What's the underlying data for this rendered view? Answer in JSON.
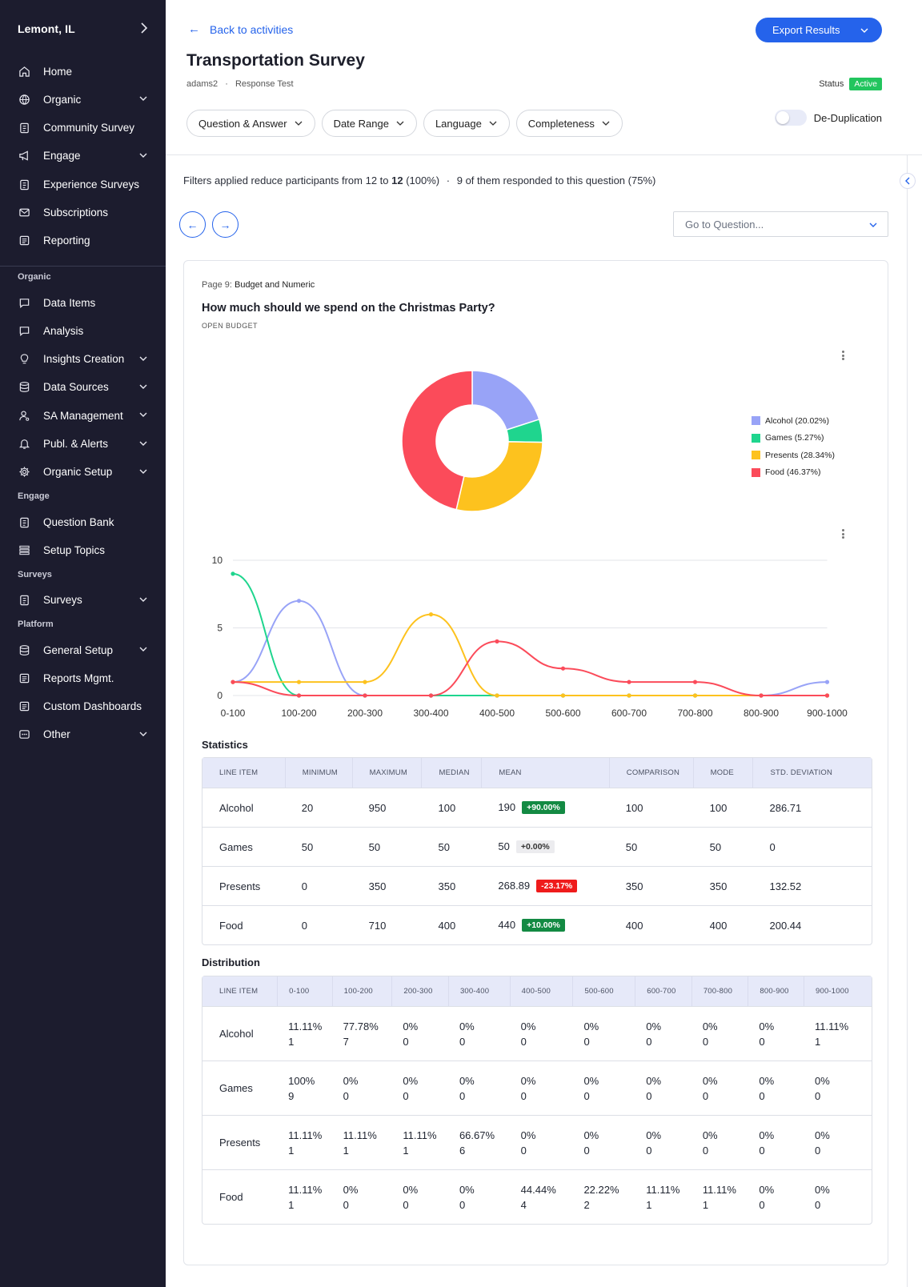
{
  "sidebar": {
    "city": "Lemont, IL",
    "items": [
      {
        "label": "Home",
        "icon": "home-icon"
      },
      {
        "label": "Organic",
        "icon": "globe-icon",
        "caret": true
      },
      {
        "label": "Community Survey",
        "icon": "clipboard-icon"
      },
      {
        "label": "Engage",
        "icon": "megaphone-icon",
        "caret": true
      },
      {
        "label": "Experience Surveys",
        "icon": "clipboard-icon"
      },
      {
        "label": "Subscriptions",
        "icon": "mail-icon"
      },
      {
        "label": "Reporting",
        "icon": "report-icon"
      }
    ],
    "sections": [
      {
        "title": "Organic",
        "items": [
          {
            "label": "Data Items",
            "icon": "chat-icon"
          },
          {
            "label": "Analysis",
            "icon": "chat-icon"
          },
          {
            "label": "Insights Creation",
            "icon": "bulb-icon",
            "caret": true
          },
          {
            "label": "Data Sources",
            "icon": "database-icon",
            "caret": true
          },
          {
            "label": "SA Management",
            "icon": "user-gear-icon",
            "caret": true
          },
          {
            "label": "Publ. & Alerts",
            "icon": "bell-icon",
            "caret": true
          },
          {
            "label": "Organic Setup",
            "icon": "gear-icon",
            "caret": true
          }
        ]
      },
      {
        "title": "Engage",
        "items": [
          {
            "label": "Question Bank",
            "icon": "clipboard-icon"
          },
          {
            "label": "Setup Topics",
            "icon": "list-icon"
          }
        ]
      },
      {
        "title": "Surveys",
        "items": [
          {
            "label": "Surveys",
            "icon": "clipboard-icon",
            "caret": true
          }
        ]
      },
      {
        "title": "Platform",
        "items": [
          {
            "label": "General Setup",
            "icon": "database-icon",
            "caret": true
          },
          {
            "label": "Reports Mgmt.",
            "icon": "report-icon"
          },
          {
            "label": "Custom Dashboards",
            "icon": "report-icon"
          },
          {
            "label": "Other",
            "icon": "dots-box-icon",
            "caret": true
          }
        ]
      }
    ]
  },
  "header": {
    "back_label": "Back to activities",
    "export_label": "Export Results",
    "title": "Transportation Survey",
    "user": "adams2",
    "separator": "·",
    "subtitle": "Response Test",
    "status_label": "Status",
    "status_value": "Active",
    "filters": [
      "Question & Answer",
      "Date Range",
      "Language",
      "Completeness"
    ],
    "dedup_label": "De-Duplication",
    "dedup_on": false
  },
  "filter_note": {
    "prefix": "Filters applied reduce participants from 12 to ",
    "bold": "12",
    "pct": " (100%)",
    "sep": "·",
    "responded": "9 of them responded to this question (75%)"
  },
  "goto_placeholder": "Go to Question...",
  "question": {
    "page_num": "Page 9:",
    "page_title": "Budget and Numeric",
    "title": "How much should we spend on the Christmas Party?",
    "type": "OPEN BUDGET"
  },
  "colors": {
    "Alcohol": "#98a3f7",
    "Games": "#1fd58e",
    "Presents": "#fdc21e",
    "Food": "#fb4b5a",
    "accent": "#2563eb"
  },
  "chart_data": [
    {
      "type": "pie",
      "variant": "donut",
      "categories": [
        "Alcohol",
        "Games",
        "Presents",
        "Food"
      ],
      "values": [
        20.02,
        5.27,
        28.34,
        46.37
      ],
      "legend": [
        "Alcohol (20.02%)",
        "Games (5.27%)",
        "Presents (28.34%)",
        "Food (46.37%)"
      ],
      "legend_position": "right"
    },
    {
      "type": "line",
      "smooth": true,
      "categories": [
        "0-100",
        "100-200",
        "200-300",
        "300-400",
        "400-500",
        "500-600",
        "600-700",
        "700-800",
        "800-900",
        "900-1000"
      ],
      "yticks": [
        "0",
        "5",
        "10"
      ],
      "ylim": [
        0,
        10
      ],
      "grid": true,
      "series": [
        {
          "name": "Alcohol",
          "values": [
            1,
            7,
            0,
            0,
            0,
            0,
            0,
            0,
            0,
            1
          ]
        },
        {
          "name": "Games",
          "values": [
            9,
            0,
            0,
            0,
            0,
            0,
            0,
            0,
            0,
            0
          ]
        },
        {
          "name": "Presents",
          "values": [
            1,
            1,
            1,
            6,
            0,
            0,
            0,
            0,
            0,
            0
          ]
        },
        {
          "name": "Food",
          "values": [
            1,
            0,
            0,
            0,
            4,
            2,
            1,
            1,
            0,
            0
          ]
        }
      ]
    }
  ],
  "statistics": {
    "title": "Statistics",
    "headers": [
      "LINE ITEM",
      "MINIMUM",
      "MAXIMUM",
      "MEDIAN",
      "MEAN",
      "COMPARISON",
      "MODE",
      "STD. DEVIATION"
    ],
    "rows": [
      {
        "item": "Alcohol",
        "min": "20",
        "max": "950",
        "median": "100",
        "mean": "190",
        "change": "+90.00%",
        "change_kind": "up",
        "comparison": "100",
        "mode": "100",
        "std": "286.71"
      },
      {
        "item": "Games",
        "min": "50",
        "max": "50",
        "median": "50",
        "mean": "50",
        "change": "+0.00%",
        "change_kind": "flat",
        "comparison": "50",
        "mode": "50",
        "std": "0"
      },
      {
        "item": "Presents",
        "min": "0",
        "max": "350",
        "median": "350",
        "mean": "268.89",
        "change": "-23.17%",
        "change_kind": "down",
        "comparison": "350",
        "mode": "350",
        "std": "132.52"
      },
      {
        "item": "Food",
        "min": "0",
        "max": "710",
        "median": "400",
        "mean": "440",
        "change": "+10.00%",
        "change_kind": "up",
        "comparison": "400",
        "mode": "400",
        "std": "200.44"
      }
    ]
  },
  "distribution": {
    "title": "Distribution",
    "headers": [
      "LINE ITEM",
      "0-100",
      "100-200",
      "200-300",
      "300-400",
      "400-500",
      "500-600",
      "600-700",
      "700-800",
      "800-900",
      "900-1000"
    ],
    "rows": [
      {
        "item": "Alcohol",
        "cells": [
          [
            "11.11%",
            "1"
          ],
          [
            "77.78%",
            "7"
          ],
          [
            "0%",
            "0"
          ],
          [
            "0%",
            "0"
          ],
          [
            "0%",
            "0"
          ],
          [
            "0%",
            "0"
          ],
          [
            "0%",
            "0"
          ],
          [
            "0%",
            "0"
          ],
          [
            "0%",
            "0"
          ],
          [
            "11.11%",
            "1"
          ]
        ]
      },
      {
        "item": "Games",
        "cells": [
          [
            "100%",
            "9"
          ],
          [
            "0%",
            "0"
          ],
          [
            "0%",
            "0"
          ],
          [
            "0%",
            "0"
          ],
          [
            "0%",
            "0"
          ],
          [
            "0%",
            "0"
          ],
          [
            "0%",
            "0"
          ],
          [
            "0%",
            "0"
          ],
          [
            "0%",
            "0"
          ],
          [
            "0%",
            "0"
          ]
        ]
      },
      {
        "item": "Presents",
        "cells": [
          [
            "11.11%",
            "1"
          ],
          [
            "11.11%",
            "1"
          ],
          [
            "11.11%",
            "1"
          ],
          [
            "66.67%",
            "6"
          ],
          [
            "0%",
            "0"
          ],
          [
            "0%",
            "0"
          ],
          [
            "0%",
            "0"
          ],
          [
            "0%",
            "0"
          ],
          [
            "0%",
            "0"
          ],
          [
            "0%",
            "0"
          ]
        ]
      },
      {
        "item": "Food",
        "cells": [
          [
            "11.11%",
            "1"
          ],
          [
            "0%",
            "0"
          ],
          [
            "0%",
            "0"
          ],
          [
            "0%",
            "0"
          ],
          [
            "44.44%",
            "4"
          ],
          [
            "22.22%",
            "2"
          ],
          [
            "11.11%",
            "1"
          ],
          [
            "11.11%",
            "1"
          ],
          [
            "0%",
            "0"
          ],
          [
            "0%",
            "0"
          ]
        ]
      }
    ]
  }
}
